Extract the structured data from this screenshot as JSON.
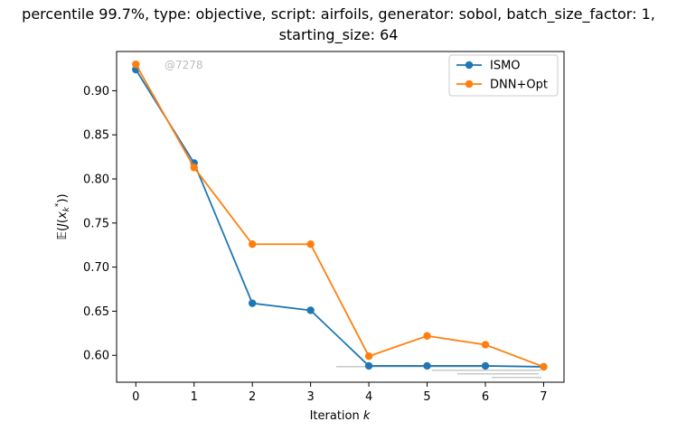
{
  "chart_data": {
    "type": "line",
    "title_lines": [
      "percentile 99.7%, type: objective, script: airfoils, generator: sobol, batch_size_factor: 1,",
      "starting_size: 64"
    ],
    "xlabel": "Iteration k",
    "ylabel": "E(J(x_k^*))",
    "x": [
      0,
      1,
      2,
      3,
      4,
      5,
      6,
      7
    ],
    "xlim": [
      -0.33,
      7.35
    ],
    "ylim": [
      0.5695,
      0.9445
    ],
    "x_ticks": [
      0,
      1,
      2,
      3,
      4,
      5,
      6,
      7
    ],
    "y_ticks": [
      0.6,
      0.65,
      0.7,
      0.75,
      0.8,
      0.85,
      0.9
    ],
    "y_tick_labels": [
      "0.60",
      "0.65",
      "0.70",
      "0.75",
      "0.80",
      "0.85",
      "0.90"
    ],
    "grid": false,
    "legend_position": "top-right",
    "series": [
      {
        "name": "ISMO",
        "color": "#1f77b4",
        "values": [
          0.924,
          0.818,
          0.659,
          0.651,
          0.588,
          0.588,
          0.588,
          0.587
        ]
      },
      {
        "name": "DNN+Opt",
        "color": "#ff7f0e",
        "values": [
          0.93,
          0.813,
          0.726,
          0.726,
          0.599,
          0.622,
          0.612,
          0.587
        ]
      }
    ],
    "annotations": [
      {
        "text": "@7278",
        "color": "#bbbbbb"
      }
    ]
  }
}
